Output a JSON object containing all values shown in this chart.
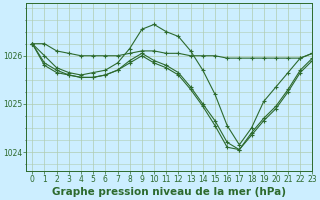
{
  "background_color": "#cceeff",
  "plot_bg_color": "#cceeff",
  "line_color": "#2d6a2d",
  "grid_color": "#b0ccb0",
  "xlabel": "Graphe pression niveau de la mer (hPa)",
  "xlabel_fontsize": 7.5,
  "ylim": [
    1023.6,
    1027.1
  ],
  "xlim": [
    -0.5,
    23
  ],
  "yticks": [
    1024,
    1025,
    1026
  ],
  "xticks": [
    0,
    1,
    2,
    3,
    4,
    5,
    6,
    7,
    8,
    9,
    10,
    11,
    12,
    13,
    14,
    15,
    16,
    17,
    18,
    19,
    20,
    21,
    22,
    23
  ],
  "series": [
    [
      1026.25,
      1026.25,
      1026.1,
      1026.05,
      1026.0,
      1026.0,
      1026.0,
      1026.0,
      1026.05,
      1026.1,
      1026.1,
      1026.05,
      1026.05,
      1026.0,
      1026.0,
      1026.0,
      1025.95,
      1025.95,
      1025.95,
      1025.95,
      1025.95,
      1025.95,
      1025.95,
      1026.05
    ],
    [
      1026.25,
      1026.0,
      1025.75,
      1025.65,
      1025.6,
      1025.65,
      1025.7,
      1025.85,
      1026.15,
      1026.55,
      1026.65,
      1026.5,
      1026.4,
      1026.1,
      1025.7,
      1025.2,
      1024.55,
      1024.15,
      1024.5,
      1025.05,
      1025.35,
      1025.65,
      1025.95,
      1026.05
    ],
    [
      1026.25,
      1025.85,
      1025.7,
      1025.6,
      1025.55,
      1025.55,
      1025.6,
      1025.7,
      1025.85,
      1026.0,
      1025.85,
      1025.75,
      1025.6,
      1025.3,
      1024.95,
      1024.55,
      1024.1,
      1024.05,
      1024.4,
      1024.7,
      1024.95,
      1025.3,
      1025.7,
      1025.95
    ],
    [
      1026.25,
      1025.8,
      1025.65,
      1025.6,
      1025.55,
      1025.55,
      1025.6,
      1025.7,
      1025.9,
      1026.05,
      1025.9,
      1025.8,
      1025.65,
      1025.35,
      1025.0,
      1024.65,
      1024.2,
      1024.05,
      1024.35,
      1024.65,
      1024.9,
      1025.25,
      1025.65,
      1025.9
    ]
  ]
}
